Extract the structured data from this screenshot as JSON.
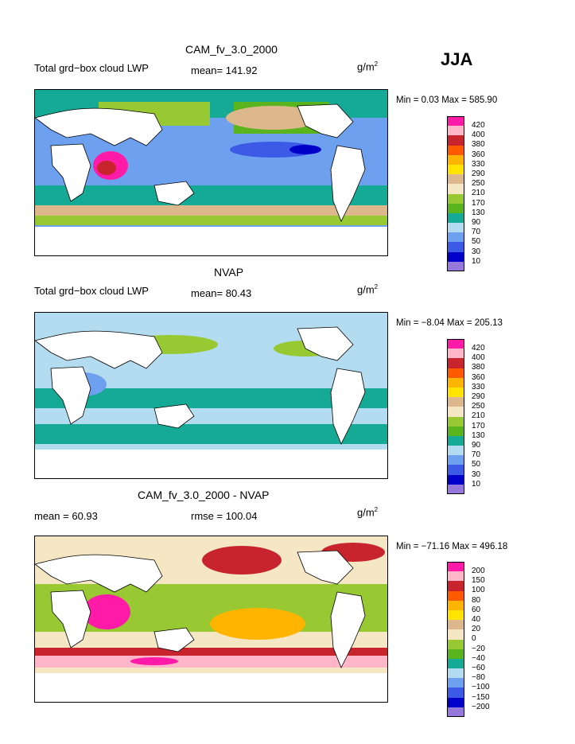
{
  "season": "JJA",
  "units": "g/m",
  "units_exp": "2",
  "panels": [
    {
      "title": "CAM_fv_3.0_2000",
      "left_label": "Total grd−box cloud LWP",
      "stat1": "mean=  141.92",
      "stat2": "",
      "minmax": "Min =     0.03  Max = 585.90"
    },
    {
      "title": "NVAP",
      "left_label": "Total grd−box cloud LWP",
      "stat1": "mean=   80.43",
      "stat2": "",
      "minmax": "Min =   −8.04  Max = 205.13"
    },
    {
      "title": "CAM_fv_3.0_2000 - NVAP",
      "left_label": "mean =    60.93",
      "stat1": "rmse = 100.04",
      "stat2": "",
      "minmax": "Min = −71.16  Max = 496.18"
    }
  ],
  "colorbar_abs": {
    "levels": [
      "420",
      "400",
      "380",
      "360",
      "330",
      "290",
      "250",
      "210",
      "170",
      "130",
      "90",
      "70",
      "50",
      "30",
      "10"
    ],
    "colors": [
      "#ff1aa8",
      "#ffb6c8",
      "#c8242d",
      "#ff5a00",
      "#ffb400",
      "#ffe400",
      "#dcb88c",
      "#f5e6c4",
      "#98c832",
      "#5ab41e",
      "#14aa96",
      "#b4dcf0",
      "#6ea0f0",
      "#3c5ae6",
      "#0000c8",
      "#9678dc"
    ]
  },
  "colorbar_diff": {
    "levels": [
      "200",
      "150",
      "100",
      "80",
      "60",
      "40",
      "20",
      "0",
      "−20",
      "−40",
      "−60",
      "−80",
      "−100",
      "−150",
      "−200"
    ],
    "colors": [
      "#ff1aa8",
      "#ffb6c8",
      "#c8242d",
      "#ff5a00",
      "#ffb400",
      "#ffe400",
      "#dcb88c",
      "#f5e6c4",
      "#98c832",
      "#5ab41e",
      "#14aa96",
      "#b4dcf0",
      "#6ea0f0",
      "#3c5ae6",
      "#0000c8",
      "#9678dc"
    ]
  },
  "chart_data": [
    {
      "type": "heatmap",
      "title": "CAM_fv_3.0_2000",
      "subtitle": "Total grd−box cloud LWP",
      "units": "g/m2",
      "mean": 141.92,
      "min": 0.03,
      "max": 585.9,
      "contour_levels": [
        10,
        30,
        50,
        70,
        90,
        130,
        170,
        210,
        250,
        290,
        330,
        360,
        380,
        400,
        420
      ]
    },
    {
      "type": "heatmap",
      "title": "NVAP",
      "subtitle": "Total grd−box cloud LWP",
      "units": "g/m2",
      "mean": 80.43,
      "min": -8.04,
      "max": 205.13,
      "contour_levels": [
        10,
        30,
        50,
        70,
        90,
        130,
        170,
        210,
        250,
        290,
        330,
        360,
        380,
        400,
        420
      ]
    },
    {
      "type": "heatmap",
      "title": "CAM_fv_3.0_2000 - NVAP",
      "units": "g/m2",
      "mean": 60.93,
      "rmse": 100.04,
      "min": -71.16,
      "max": 496.18,
      "contour_levels": [
        -200,
        -150,
        -100,
        -80,
        -60,
        -40,
        -20,
        0,
        20,
        40,
        60,
        80,
        100,
        150,
        200
      ]
    }
  ]
}
